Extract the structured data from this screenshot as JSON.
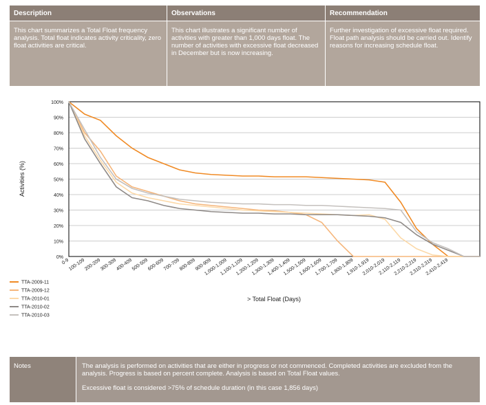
{
  "table": {
    "header": [
      "Description",
      "Observations",
      "Recommendation"
    ],
    "body": [
      "This chart summarizes a Total Float frequency analysis. Total float indicates activity criticality, zero float activities are critical.",
      "This chart illustrates a significant number of activities with greater than 1,000 days float. The number of activities with excessive float decreased in December but is now increasing.",
      "Further investigation of excessive float required. Float path analysis should be carried out. Identify reasons for increasing schedule float."
    ]
  },
  "notes": {
    "label": "Notes",
    "text": [
      "The analysis is performed on activities that are either in progress or not commenced. Completed activities are excluded from the analysis. Progress is based on percent complete. Analysis is based on Total Float values.",
      "Excessive float is considered >75% of schedule duration (in this case 1,856 days)"
    ]
  },
  "chart_data": {
    "type": "line",
    "xlabel": "> Total Float (Days)",
    "ylabel": "Activities (%)",
    "categories": [
      "0-9",
      "100-109",
      "200-209",
      "300-309",
      "400-409",
      "500-509",
      "600-609",
      "700-709",
      "800-809",
      "900-909",
      "1,000-1,009",
      "1,100-1,109",
      "1,200-1,209",
      "1,300-1,309",
      "1,400-1,409",
      "1,500-1,509",
      "1,600-1,609",
      "1,700-1,709",
      "1,800-1,809",
      "1,910-1,919",
      "2,010-2,019",
      "2,110-2,119",
      "2,210-2,219",
      "2,310-2,319",
      "2,410-2,419",
      null,
      null
    ],
    "series": [
      {
        "name": "TTA-2009-11",
        "color": "#f08a24",
        "values": [
          100,
          92,
          88,
          78,
          70,
          64,
          60,
          56,
          54,
          53,
          52.5,
          52,
          52,
          51.5,
          51.5,
          51.5,
          51,
          50.5,
          50,
          49.5,
          48,
          35,
          18,
          8,
          0,
          0,
          0
        ]
      },
      {
        "name": "TTA-2009-12",
        "color": "#f5b57a",
        "values": [
          100,
          80,
          68,
          52,
          45,
          42,
          39,
          36,
          34,
          33,
          32,
          31,
          30,
          29.5,
          28.5,
          27,
          22,
          10,
          0,
          0,
          0,
          0,
          0,
          0,
          0,
          0,
          0
        ]
      },
      {
        "name": "TTA-2010-01",
        "color": "#fcd9a8",
        "values": [
          100,
          78,
          62,
          48,
          41,
          38,
          36,
          34,
          33,
          32,
          31,
          30,
          29.5,
          29,
          28.5,
          28,
          27.5,
          27,
          26.5,
          27,
          24,
          12,
          5,
          1,
          0,
          0,
          0
        ]
      },
      {
        "name": "TTA-2010-02",
        "color": "#8f8a87",
        "values": [
          100,
          76,
          60,
          45,
          38,
          36,
          33,
          31,
          30,
          29,
          28.5,
          28,
          28,
          27.5,
          27.5,
          27,
          27,
          27,
          26.5,
          26,
          25,
          22,
          14,
          8,
          4,
          0,
          0
        ]
      },
      {
        "name": "TTA-2010-03",
        "color": "#c4c0bd",
        "values": [
          100,
          82,
          64,
          50,
          44,
          41,
          39,
          37,
          36,
          35,
          34.5,
          34,
          34,
          33.5,
          33.5,
          33,
          33,
          32.5,
          32,
          31.5,
          31,
          30,
          16,
          9,
          5,
          0,
          0
        ]
      }
    ],
    "ylim": [
      0,
      100
    ],
    "yticks": [
      {
        "value": 0,
        "label": "0%"
      },
      {
        "value": 10,
        "label": "10%"
      },
      {
        "value": 20,
        "label": "20%"
      },
      {
        "value": 30,
        "label": "30%"
      },
      {
        "value": 40,
        "label": "40%"
      },
      {
        "value": 50,
        "label": "50%"
      },
      {
        "value": 60,
        "label": "60%"
      },
      {
        "value": 70,
        "label": "70%"
      },
      {
        "value": 80,
        "label": "80%"
      },
      {
        "value": 90,
        "label": "90%"
      },
      {
        "value": 100,
        "label": "100%"
      }
    ],
    "grid": true
  }
}
